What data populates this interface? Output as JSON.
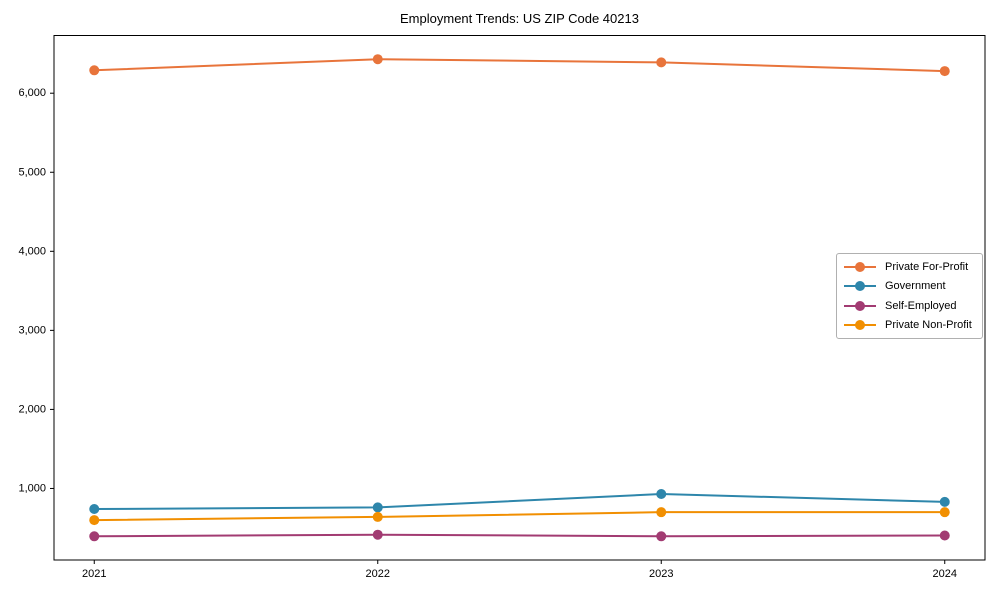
{
  "chart_data": {
    "type": "line",
    "title": "Employment Trends: US ZIP Code 40213",
    "xlabel": "",
    "ylabel": "",
    "categories": [
      "2021",
      "2022",
      "2023",
      "2024"
    ],
    "series": [
      {
        "name": "Private For-Profit",
        "color": "#E8743B",
        "values": [
          6290,
          6430,
          6390,
          6280
        ]
      },
      {
        "name": "Government",
        "color": "#2E86AB",
        "values": [
          740,
          760,
          930,
          830
        ]
      },
      {
        "name": "Self-Employed",
        "color": "#A23B72",
        "values": [
          395,
          415,
          395,
          405
        ]
      },
      {
        "name": "Private Non-Profit",
        "color": "#F18F01",
        "values": [
          600,
          640,
          700,
          700
        ]
      }
    ],
    "yticks": [
      {
        "value": 1000,
        "label": "1,000"
      },
      {
        "value": 2000,
        "label": "2,000"
      },
      {
        "value": 3000,
        "label": "3,000"
      },
      {
        "value": 4000,
        "label": "4,000"
      },
      {
        "value": 5000,
        "label": "5,000"
      },
      {
        "value": 6000,
        "label": "6,000"
      }
    ],
    "ylim": [
      95,
      6730
    ],
    "grid": false,
    "legend_position": "center right"
  },
  "colors": {
    "axis": "#000000",
    "tick_text": "#000000",
    "legend_border": "#b0b0b0",
    "background": "#ffffff"
  }
}
